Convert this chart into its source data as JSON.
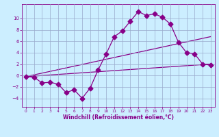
{
  "xlabel": "Windchill (Refroidissement éolien,°C)",
  "background_color": "#cceeff",
  "line_color": "#880088",
  "grid_color": "#99aacc",
  "xlim": [
    -0.5,
    23.5
  ],
  "ylim": [
    -5.5,
    12.5
  ],
  "yticks": [
    -4,
    -2,
    0,
    2,
    4,
    6,
    8,
    10
  ],
  "xticks": [
    0,
    1,
    2,
    3,
    4,
    5,
    6,
    7,
    8,
    9,
    10,
    11,
    12,
    13,
    14,
    15,
    16,
    17,
    18,
    19,
    20,
    21,
    22,
    23
  ],
  "line1_x": [
    0,
    1,
    2,
    3,
    4,
    5,
    6,
    7,
    8,
    9,
    10,
    11,
    12,
    13,
    14,
    15,
    16,
    17,
    18,
    19,
    20,
    21,
    22,
    23
  ],
  "line1_y": [
    -0.2,
    -0.3,
    -1.3,
    -1.2,
    -1.5,
    -3.0,
    -2.5,
    -4.0,
    -2.2,
    1.0,
    3.8,
    6.8,
    7.8,
    9.5,
    11.2,
    10.5,
    10.8,
    10.2,
    9.0,
    5.8,
    4.0,
    3.8,
    2.0,
    1.8
  ],
  "line2_x": [
    0,
    23
  ],
  "line2_y": [
    -0.2,
    2.0
  ],
  "line3_x": [
    0,
    23
  ],
  "line3_y": [
    -0.2,
    6.8
  ],
  "xlabel_fontsize": 5.5,
  "tick_fontsize": 5.0,
  "linewidth": 0.9,
  "markersize": 3.5
}
